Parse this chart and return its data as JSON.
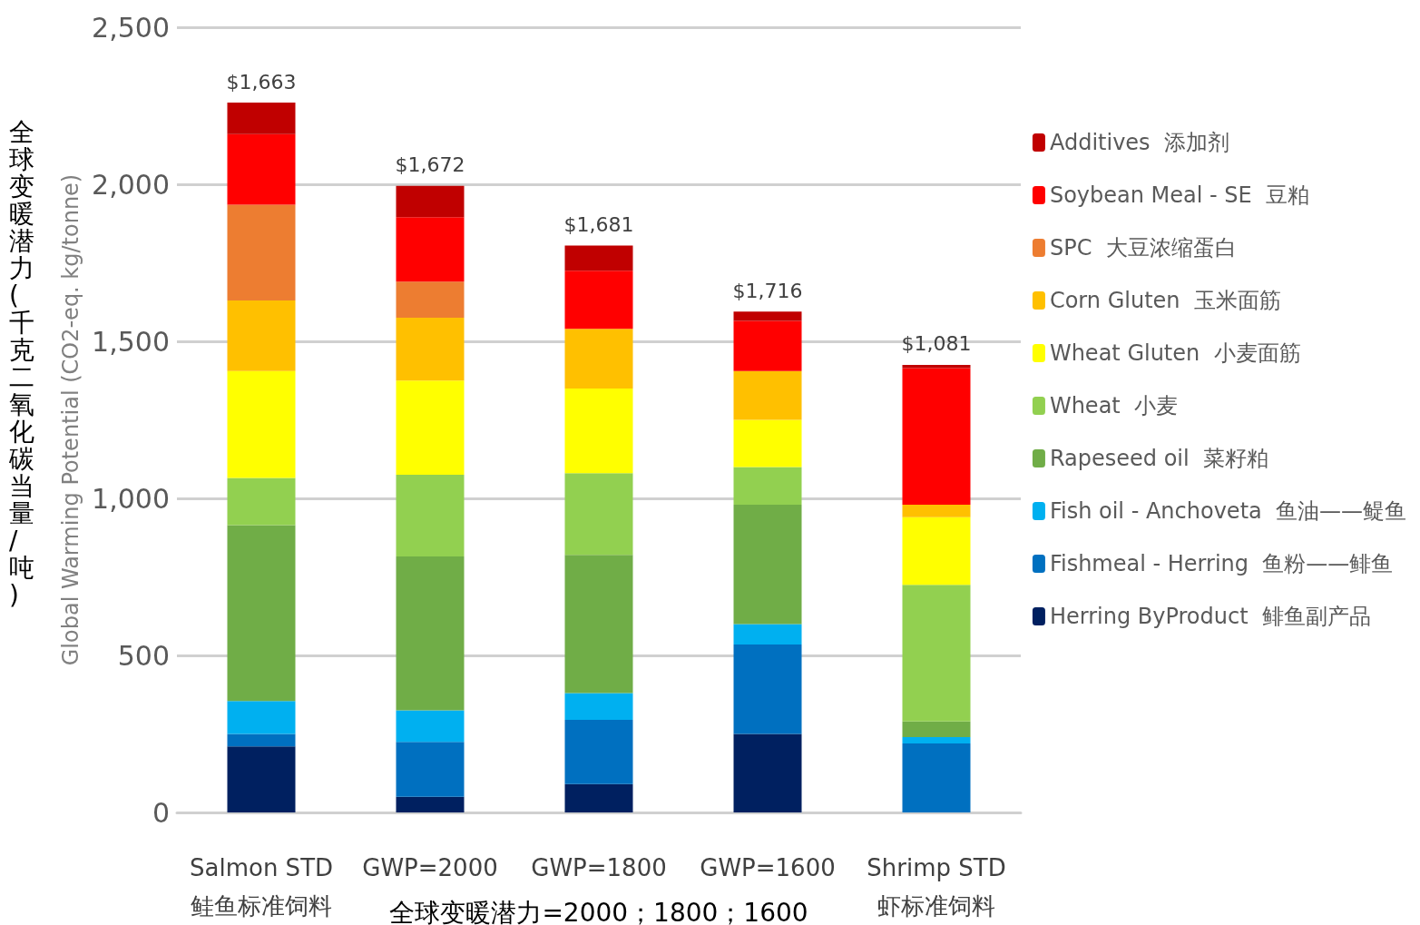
{
  "chart_data": {
    "type": "bar",
    "stacked": true,
    "ylabel": "Global Warming Potential (CO2-eq. kg/tonne)",
    "categories": [
      "Salmon STD\n鲑鱼标准饲料",
      "GWP=2000",
      "GWP=1800",
      "GWP=1600",
      "Shrimp STD\n虾标准饲料"
    ],
    "series": [
      {
        "name": "Herring ByProduct  鲱鱼副产品",
        "color": "#002060",
        "values": [
          210,
          50,
          90,
          250,
          0
        ]
      },
      {
        "name": "Fishmeal - Herring  鱼粉——鲱鱼",
        "color": "#0070c0",
        "values": [
          40,
          175,
          205,
          285,
          220
        ]
      },
      {
        "name": "Fish oil - Anchoveta  鱼油——鳀鱼",
        "color": "#00b0f0",
        "values": [
          105,
          100,
          85,
          65,
          20
        ]
      },
      {
        "name": "Rapeseed oil  菜籽粕",
        "color": "#70ad47",
        "values": [
          560,
          490,
          440,
          380,
          50
        ]
      },
      {
        "name": "Wheat  小麦",
        "color": "#92d050",
        "values": [
          150,
          260,
          260,
          120,
          435
        ]
      },
      {
        "name": "Wheat Gluten  小麦面筋",
        "color": "#ffff00",
        "values": [
          340,
          300,
          270,
          150,
          215
        ]
      },
      {
        "name": "Corn Gluten  玉米面筋",
        "color": "#ffc000",
        "values": [
          225,
          200,
          190,
          155,
          40
        ]
      },
      {
        "name": "SPC  大豆浓缩蛋白",
        "color": "#ed7d31",
        "values": [
          305,
          115,
          0,
          0,
          0
        ]
      },
      {
        "name": "Soybean Meal - SE  豆粕",
        "color": "#ff0000",
        "values": [
          225,
          205,
          185,
          160,
          435
        ]
      },
      {
        "name": "Additives  添加剂",
        "color": "#c00000",
        "values": [
          100,
          100,
          80,
          30,
          10
        ]
      }
    ],
    "annotations": [
      "全球变暖潜力(千克二氧化碳当量/吨)",
      "全球变暖潜力=2000；1800；1600",
      {
        "text": "$1,663",
        "x": "Salmon STD\n鲑鱼标准饲料",
        "y": 2260
      },
      {
        "text": "$1,672",
        "x": "GWP=2000",
        "y": 1995
      },
      {
        "text": "$1,681",
        "x": "GWP=1800",
        "y": 1805
      },
      {
        "text": "$1,716",
        "x": "GWP=1600",
        "y": 1595
      },
      {
        "text": "$1,081",
        "x": "Shrimp STD\n虾标准饲料",
        "y": 1425
      }
    ],
    "ylim": [
      0,
      2500
    ],
    "yticks": [
      0,
      500,
      {
        "value": 1000,
        "label": "1,000"
      },
      {
        "value": 1500,
        "label": "1,500"
      },
      {
        "value": 2000,
        "label": "2,000"
      },
      {
        "value": 2500,
        "label": "2,500"
      }
    ],
    "grid": "y",
    "legend": "right"
  }
}
